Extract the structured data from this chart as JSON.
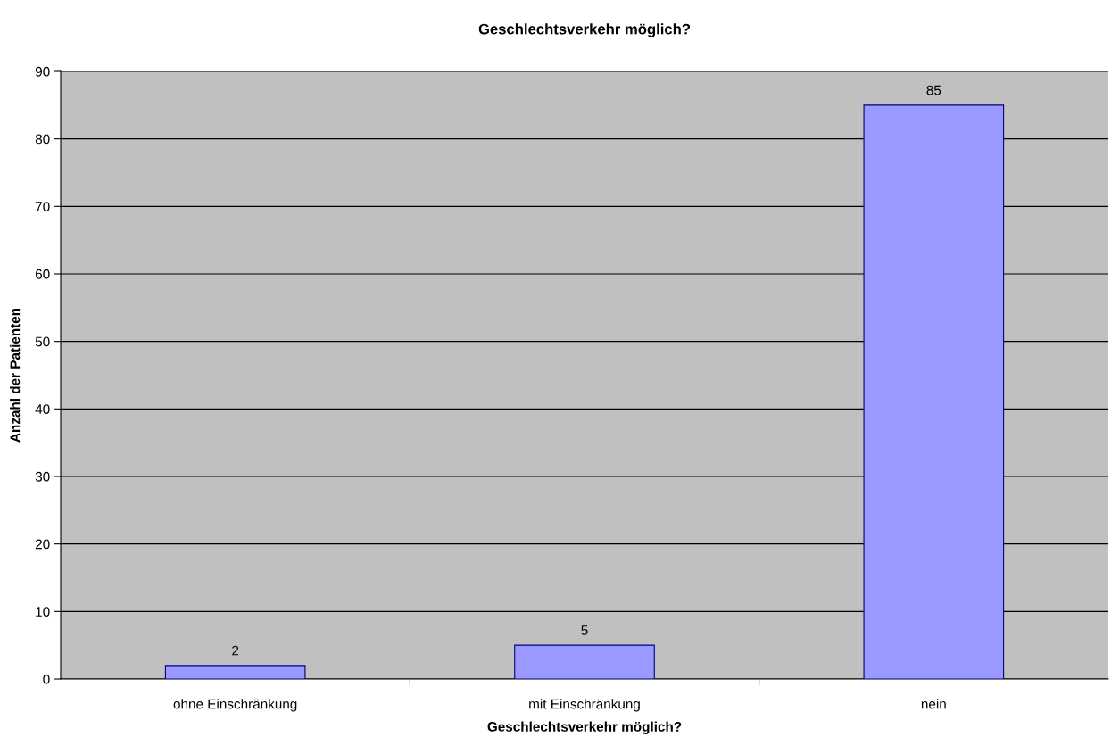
{
  "chart_data": {
    "type": "bar",
    "title": "Geschlechtsverkehr möglich?",
    "xlabel": "Geschlechtsverkehr möglich?",
    "ylabel": "Anzahl der Patienten",
    "categories": [
      "ohne Einschränkung",
      "mit Einschränkung",
      "nein"
    ],
    "values": [
      2,
      5,
      85
    ],
    "color": "#9999ff",
    "ylim": [
      0,
      90
    ],
    "yticks": [
      0,
      10,
      20,
      30,
      40,
      50,
      60,
      70,
      80,
      90
    ],
    "grid": "y",
    "data_labels": true,
    "legend": false
  }
}
